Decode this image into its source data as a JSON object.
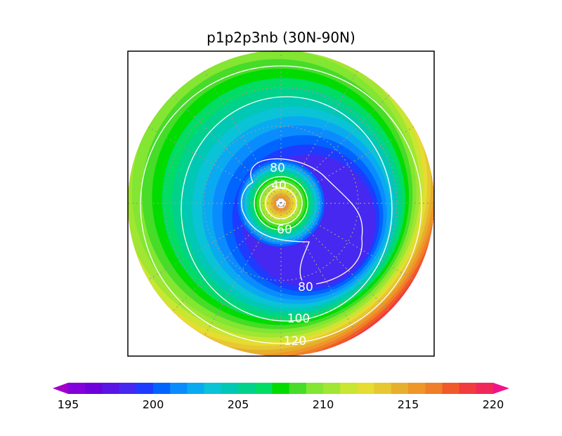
{
  "title": "p1p2p3nb (30N-90N)",
  "contour_labels": [
    "80",
    "40",
    "60",
    "80",
    "100",
    "120"
  ],
  "colorbar": {
    "labels": [
      195,
      200,
      205,
      210,
      215,
      220
    ],
    "colors": [
      "#a000c8",
      "#8200dc",
      "#6e00dc",
      "#5a14e6",
      "#4628f0",
      "#1e3cff",
      "#0064ff",
      "#0a8cff",
      "#0aaaf0",
      "#0ac3d7",
      "#00c8b4",
      "#00d28c",
      "#00dc64",
      "#00dc00",
      "#46dc28",
      "#82e632",
      "#a0e632",
      "#c8e632",
      "#e6dc32",
      "#e6c832",
      "#e6af2d",
      "#f09628",
      "#f07d28",
      "#f05a28",
      "#f03c3c",
      "#f0285a",
      "#f0148c"
    ]
  }
}
